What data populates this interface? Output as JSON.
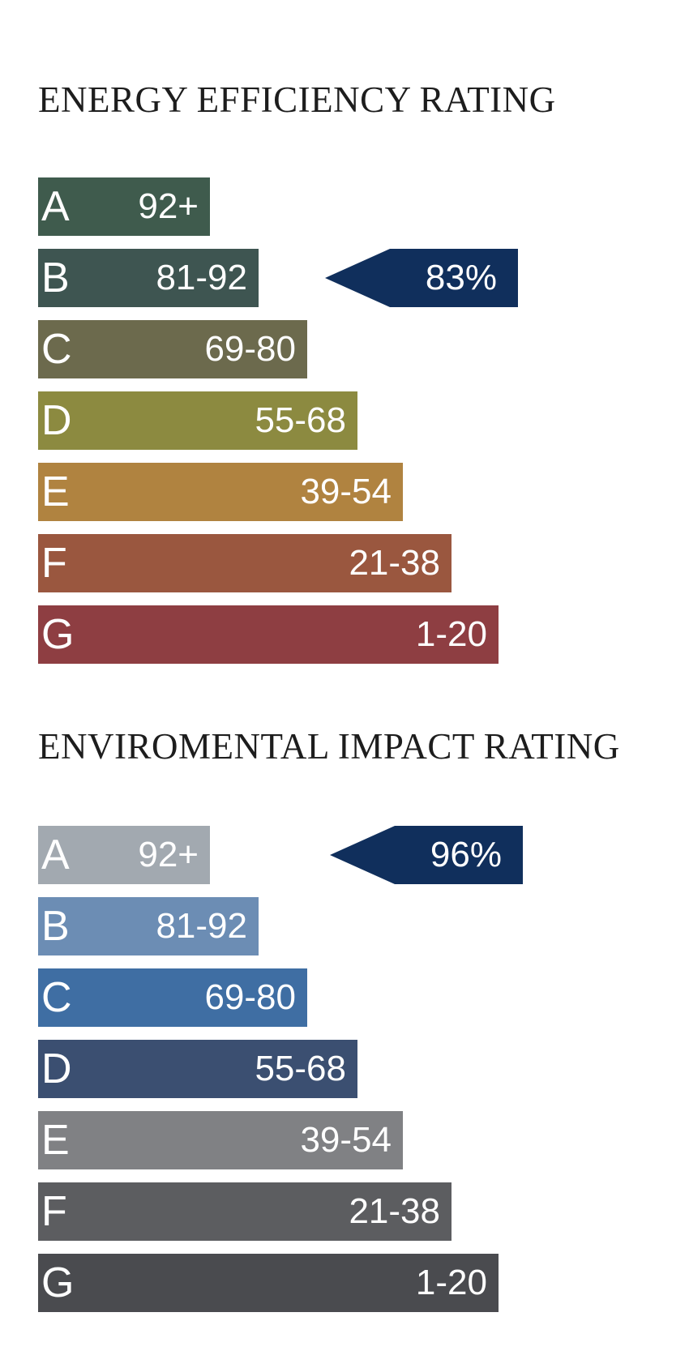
{
  "chart_data": [
    {
      "type": "bar",
      "title": "ENERGY EFFICIENCY RATING",
      "categories": [
        "A",
        "B",
        "C",
        "D",
        "E",
        "F",
        "G"
      ],
      "ranges": [
        "92+",
        "81-92",
        "69-80",
        "55-68",
        "39-54",
        "21-38",
        "1-20"
      ],
      "colors": [
        "#3f5b4d",
        "#3e5551",
        "#6c6a4d",
        "#8c8a40",
        "#b08340",
        "#9a573f",
        "#8e3e42"
      ],
      "current": {
        "band": "B",
        "label": "83%",
        "value": 83,
        "color": "#102f5c"
      }
    },
    {
      "type": "bar",
      "title": "ENVIROMENTAL IMPACT RATING",
      "categories": [
        "A",
        "B",
        "C",
        "D",
        "E",
        "F",
        "G"
      ],
      "ranges": [
        "92+",
        "81-92",
        "69-80",
        "55-68",
        "39-54",
        "21-38",
        "1-20"
      ],
      "colors": [
        "#a2a9b0",
        "#6c8db4",
        "#3f6ea3",
        "#3b4f71",
        "#808184",
        "#5c5d60",
        "#4a4b4f"
      ],
      "current": {
        "band": "A",
        "label": "96%",
        "value": 96,
        "color": "#102f5c"
      }
    }
  ]
}
